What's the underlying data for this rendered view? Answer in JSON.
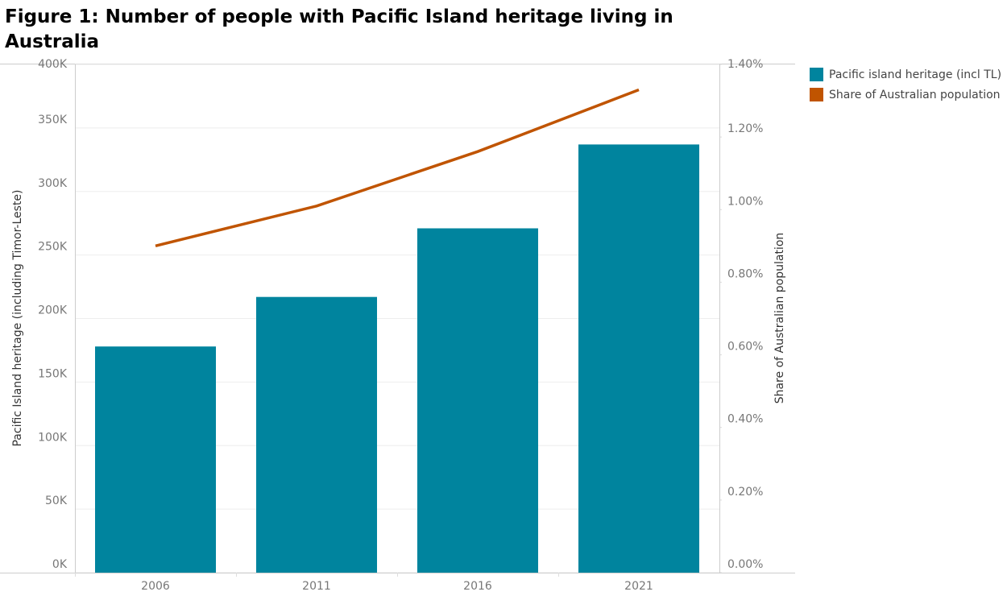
{
  "chart_data": {
    "type": "bar-line",
    "title": "Figure 1: Number of people with Pacific Island heritage living in Australia",
    "categories": [
      "2006",
      "2011",
      "2016",
      "2021"
    ],
    "series": [
      {
        "name": "Pacific island heritage (incl TL)",
        "type": "bar",
        "color": "#00849e",
        "values": [
          178000,
          217000,
          271000,
          337000
        ]
      },
      {
        "name": "Share of Australian population",
        "type": "line",
        "axis": "y2",
        "color": "#c05400",
        "values": [
          0.9,
          1.01,
          1.16,
          1.33
        ]
      }
    ],
    "ylabel": "Pacific Island heritage (including Timor-Leste)",
    "y2label": "Share of Australian population",
    "ylim": [
      0,
      400000
    ],
    "yticks": [
      {
        "value": 0,
        "label": "0K"
      },
      {
        "value": 50000,
        "label": "50K"
      },
      {
        "value": 100000,
        "label": "100K"
      },
      {
        "value": 150000,
        "label": "150K"
      },
      {
        "value": 200000,
        "label": "200K"
      },
      {
        "value": 250000,
        "label": "250K"
      },
      {
        "value": 300000,
        "label": "300K"
      },
      {
        "value": 350000,
        "label": "350K"
      },
      {
        "value": 400000,
        "label": "400K"
      }
    ],
    "y2lim": [
      0,
      1.4
    ],
    "y2ticks": [
      {
        "value": 0,
        "label": "0.00%"
      },
      {
        "value": 0.2,
        "label": "0.20%"
      },
      {
        "value": 0.4,
        "label": "0.40%"
      },
      {
        "value": 0.6,
        "label": "0.60%"
      },
      {
        "value": 0.8,
        "label": "0.80%"
      },
      {
        "value": 1.0,
        "label": "1.00%"
      },
      {
        "value": 1.2,
        "label": "1.20%"
      },
      {
        "value": 1.4,
        "label": "1.40%"
      }
    ],
    "grid": true
  }
}
